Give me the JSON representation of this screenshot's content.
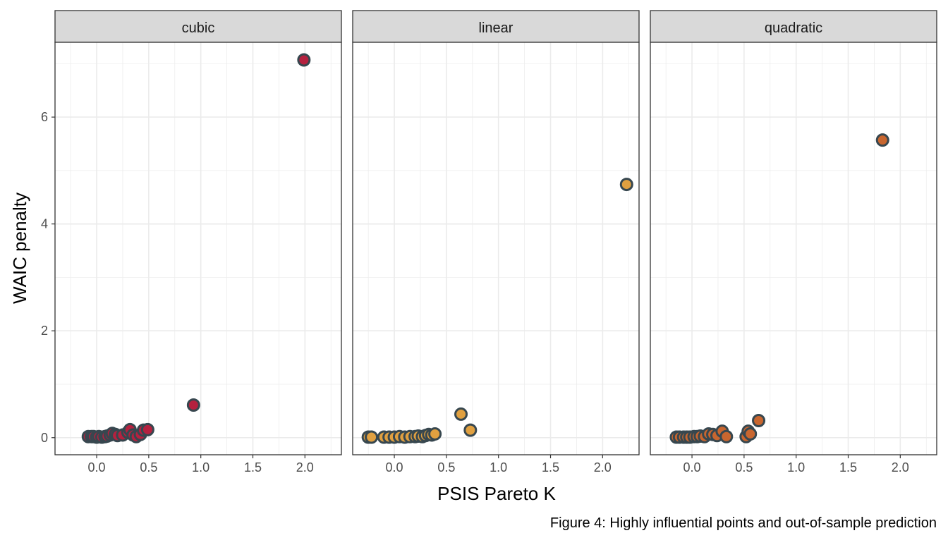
{
  "chart_data": {
    "type": "scatter",
    "xlabel": "PSIS Pareto K",
    "ylabel": "WAIC penalty",
    "caption": "Figure 4: Highly influential points and out-of-sample prediction",
    "xlim": [
      -0.4,
      2.35
    ],
    "ylim": [
      -0.32,
      7.4
    ],
    "x_ticks": [
      0.0,
      0.5,
      1.0,
      1.5,
      2.0
    ],
    "x_tick_labels": [
      "0.0",
      "0.5",
      "1.0",
      "1.5",
      "2.0"
    ],
    "y_ticks": [
      0,
      2,
      4,
      6
    ],
    "y_tick_labels": [
      "0",
      "2",
      "4",
      "6"
    ],
    "grid": true,
    "colors": {
      "strip_bg": "#d9d9d9",
      "panel_border": "#333333",
      "grid_major": "#ebebeb",
      "point_stroke": "#37474f"
    },
    "panels": [
      {
        "title": "cubic",
        "color": "#b5213f",
        "points": [
          {
            "x": -0.08,
            "y": 0.02
          },
          {
            "x": -0.05,
            "y": 0.02
          },
          {
            "x": -0.03,
            "y": 0.02
          },
          {
            "x": 0.0,
            "y": 0.01
          },
          {
            "x": 0.02,
            "y": 0.02
          },
          {
            "x": 0.05,
            "y": 0.01
          },
          {
            "x": 0.08,
            "y": 0.02
          },
          {
            "x": 0.1,
            "y": 0.03
          },
          {
            "x": 0.13,
            "y": 0.05
          },
          {
            "x": 0.15,
            "y": 0.08
          },
          {
            "x": 0.18,
            "y": 0.06
          },
          {
            "x": 0.2,
            "y": 0.04
          },
          {
            "x": 0.25,
            "y": 0.05
          },
          {
            "x": 0.3,
            "y": 0.1
          },
          {
            "x": 0.32,
            "y": 0.15
          },
          {
            "x": 0.35,
            "y": 0.05
          },
          {
            "x": 0.38,
            "y": 0.02
          },
          {
            "x": 0.42,
            "y": 0.06
          },
          {
            "x": 0.45,
            "y": 0.14
          },
          {
            "x": 0.49,
            "y": 0.15
          },
          {
            "x": 0.93,
            "y": 0.61
          },
          {
            "x": 1.99,
            "y": 7.07
          }
        ]
      },
      {
        "title": "linear",
        "color": "#e0a040",
        "points": [
          {
            "x": -0.25,
            "y": 0.01
          },
          {
            "x": -0.22,
            "y": 0.01
          },
          {
            "x": -0.1,
            "y": 0.01
          },
          {
            "x": -0.05,
            "y": 0.01
          },
          {
            "x": 0.0,
            "y": 0.01
          },
          {
            "x": 0.05,
            "y": 0.02
          },
          {
            "x": 0.1,
            "y": 0.01
          },
          {
            "x": 0.15,
            "y": 0.02
          },
          {
            "x": 0.2,
            "y": 0.02
          },
          {
            "x": 0.23,
            "y": 0.03
          },
          {
            "x": 0.27,
            "y": 0.02
          },
          {
            "x": 0.3,
            "y": 0.04
          },
          {
            "x": 0.33,
            "y": 0.06
          },
          {
            "x": 0.36,
            "y": 0.05
          },
          {
            "x": 0.39,
            "y": 0.07
          },
          {
            "x": 0.64,
            "y": 0.44
          },
          {
            "x": 0.73,
            "y": 0.14
          },
          {
            "x": 2.23,
            "y": 4.74
          }
        ]
      },
      {
        "title": "quadratic",
        "color": "#c8662f",
        "points": [
          {
            "x": -0.15,
            "y": 0.01
          },
          {
            "x": -0.12,
            "y": 0.01
          },
          {
            "x": -0.08,
            "y": 0.01
          },
          {
            "x": -0.05,
            "y": 0.01
          },
          {
            "x": -0.02,
            "y": 0.01
          },
          {
            "x": 0.02,
            "y": 0.02
          },
          {
            "x": 0.05,
            "y": 0.02
          },
          {
            "x": 0.08,
            "y": 0.03
          },
          {
            "x": 0.12,
            "y": 0.02
          },
          {
            "x": 0.16,
            "y": 0.07
          },
          {
            "x": 0.2,
            "y": 0.06
          },
          {
            "x": 0.24,
            "y": 0.04
          },
          {
            "x": 0.29,
            "y": 0.12
          },
          {
            "x": 0.33,
            "y": 0.02
          },
          {
            "x": 0.52,
            "y": 0.02
          },
          {
            "x": 0.54,
            "y": 0.12
          },
          {
            "x": 0.56,
            "y": 0.07
          },
          {
            "x": 0.64,
            "y": 0.32
          },
          {
            "x": 1.83,
            "y": 5.57
          }
        ]
      }
    ]
  }
}
